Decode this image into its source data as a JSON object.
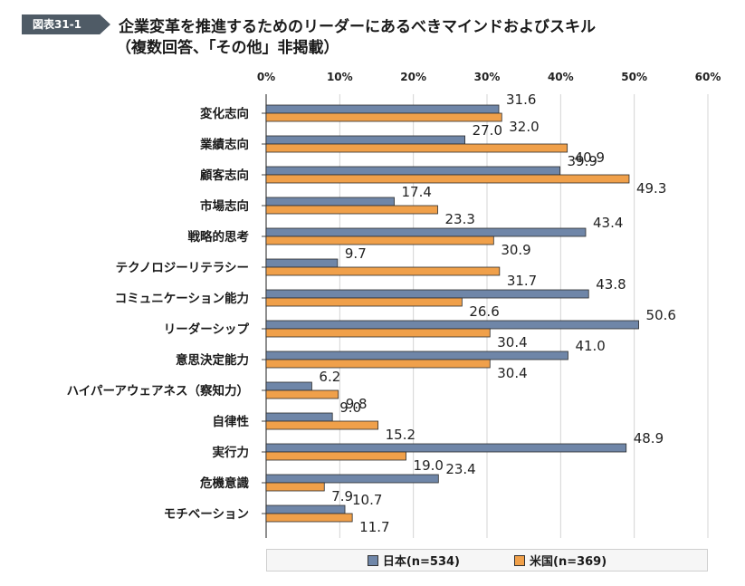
{
  "header": {
    "badge": "図表31-1",
    "title_line1": "企業変革を推進するためのリーダーにあるべきマインドおよびスキル",
    "title_line2": "（複数回答、「その他」非掲載）"
  },
  "colors": {
    "japan": "#6f86a8",
    "us": "#f0a04a"
  },
  "chart_data": {
    "type": "bar",
    "orientation": "horizontal",
    "x_tick_labels": [
      "0%",
      "10%",
      "20%",
      "30%",
      "40%",
      "50%",
      "60%"
    ],
    "xlim": [
      0,
      60
    ],
    "grid": true,
    "legend_position": "bottom",
    "categories": [
      "変化志向",
      "業績志向",
      "顧客志向",
      "市場志向",
      "戦略的思考",
      "テクノロジーリテラシー",
      "コミュニケーション能力",
      "リーダーシップ",
      "意思決定能力",
      "ハイパーアウェアネス（察知力）",
      "自律性",
      "実行力",
      "危機意識",
      "モチベーション"
    ],
    "series": [
      {
        "name": "日本(n=534)",
        "values": [
          31.6,
          27.0,
          39.9,
          17.4,
          43.4,
          9.7,
          43.8,
          50.6,
          41.0,
          6.2,
          9.0,
          48.9,
          23.4,
          10.7
        ]
      },
      {
        "name": "米国(n=369)",
        "values": [
          32.0,
          40.9,
          49.3,
          23.3,
          30.9,
          31.7,
          26.6,
          30.4,
          30.4,
          9.8,
          15.2,
          19.0,
          7.9,
          11.7
        ]
      }
    ]
  }
}
